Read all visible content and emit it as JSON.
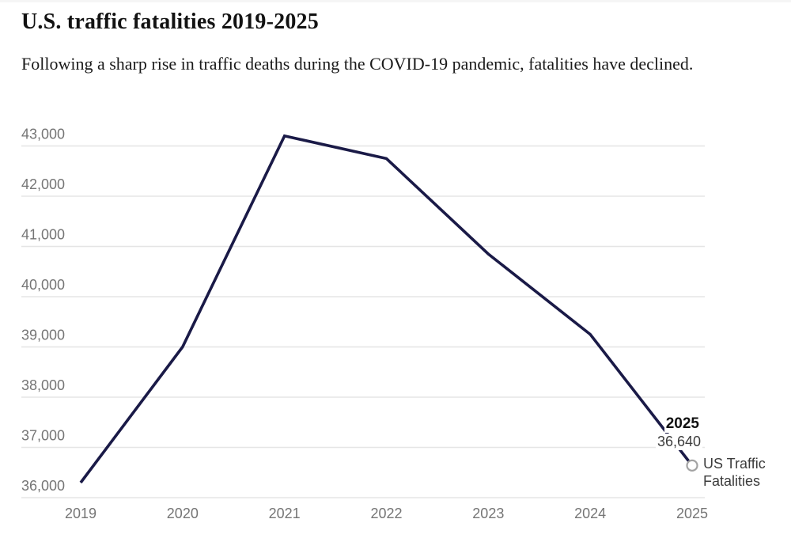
{
  "page": {
    "title": "U.S. traffic fatalities 2019-2025",
    "subtitle": "Following a sharp rise in traffic deaths during the COVID-19 pandemic, fatalities have declined."
  },
  "chart_data": {
    "type": "line",
    "title": "U.S. traffic fatalities 2019-2025",
    "x": [
      2019,
      2020,
      2021,
      2022,
      2023,
      2024,
      2025
    ],
    "x_tick_labels": [
      "2019",
      "2020",
      "2021",
      "2022",
      "2023",
      "2024",
      "2025"
    ],
    "series": [
      {
        "name": "US Traffic Fatalities",
        "values": [
          36300,
          39000,
          43200,
          42750,
          40850,
          39250,
          36640
        ]
      }
    ],
    "ylim": [
      36000,
      43000
    ],
    "y_ticks": [
      {
        "value": 36000,
        "label": "36,000"
      },
      {
        "value": 37000,
        "label": "37,000"
      },
      {
        "value": 38000,
        "label": "38,000"
      },
      {
        "value": 39000,
        "label": "39,000"
      },
      {
        "value": 40000,
        "label": "40,000"
      },
      {
        "value": 41000,
        "label": "41,000"
      },
      {
        "value": 42000,
        "label": "42,000"
      },
      {
        "value": 43000,
        "label": "43,000"
      }
    ],
    "grid": true,
    "legend_position": "right-of-line-end",
    "marker": "open-circle-on-last-point",
    "annotations": {
      "end_year": "2025",
      "end_value": "36,640",
      "series_label": "US Traffic Fatalities"
    },
    "colors": {
      "line": "#1a1a47",
      "grid": "#e5e5e5",
      "tick_label": "#757575",
      "annotation_year": "#111111",
      "annotation_value": "#3d3d3d",
      "series_label": "#3c3c3c",
      "marker_stroke": "#a3a3a3",
      "marker_fill": "#ffffff"
    }
  }
}
